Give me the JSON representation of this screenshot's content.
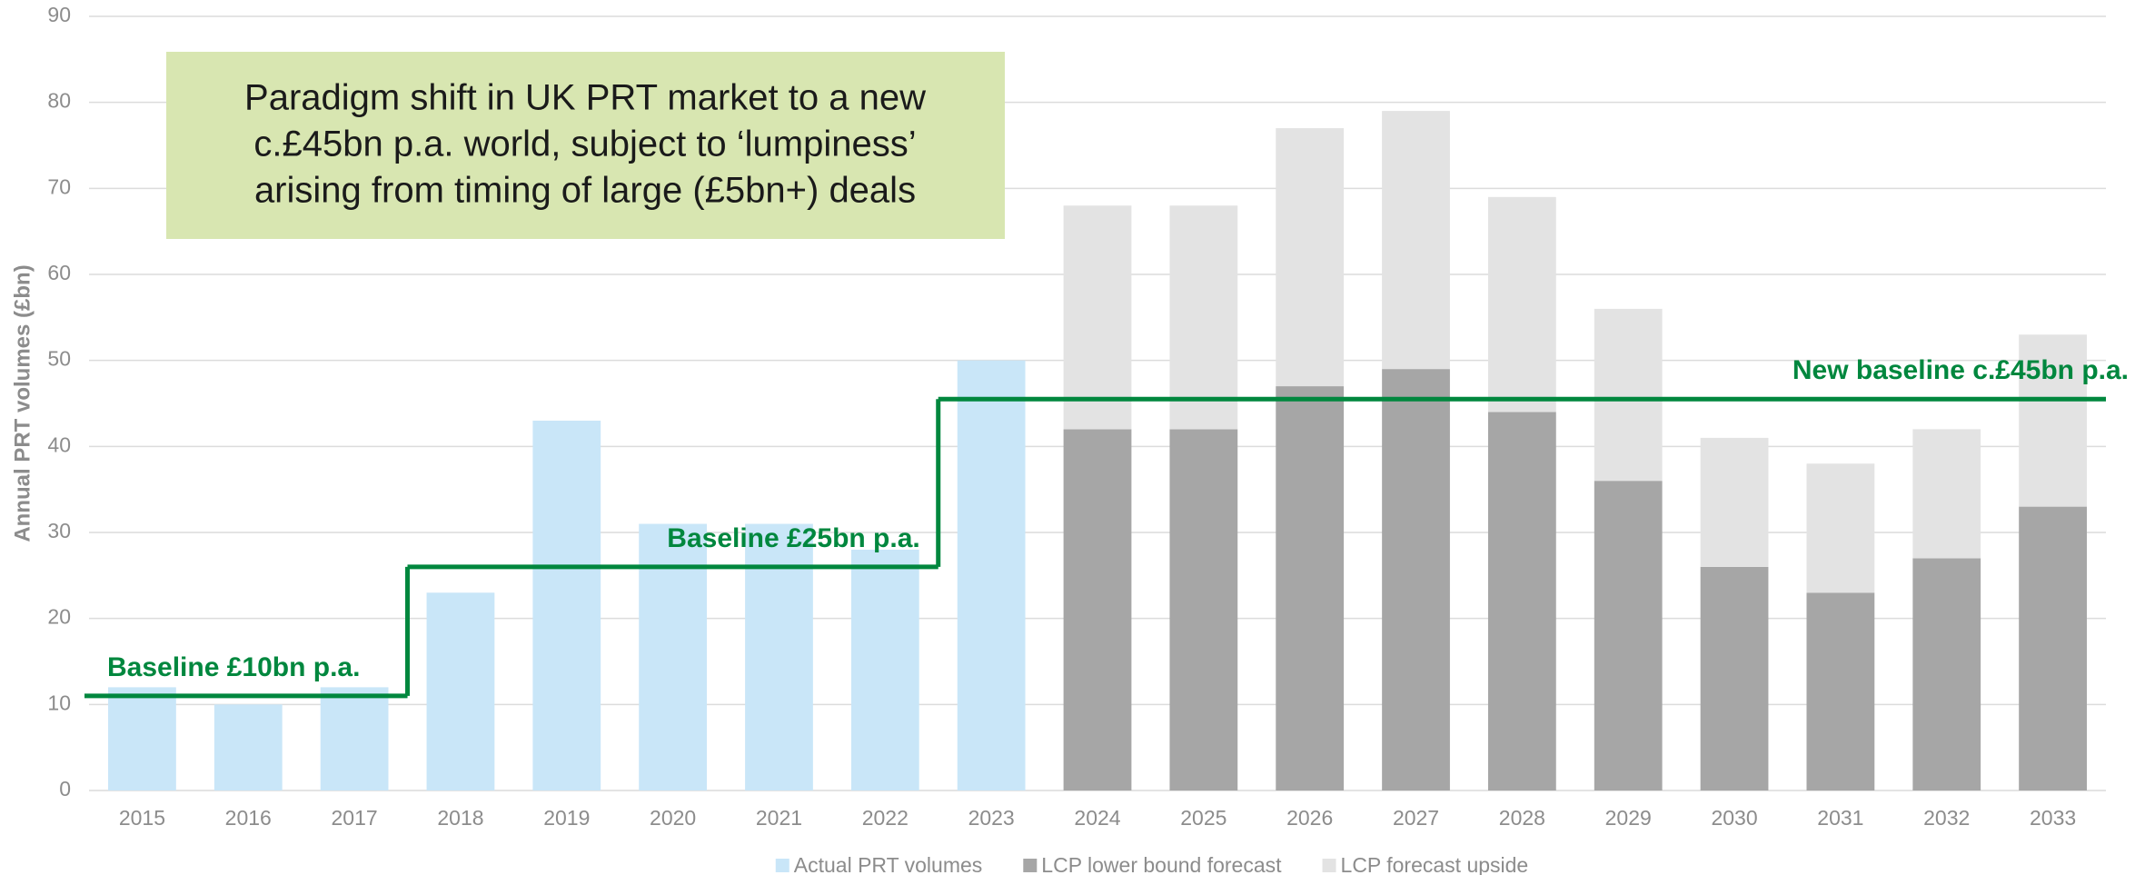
{
  "chart_data": {
    "type": "bar",
    "stacked": true,
    "y_axis_label": "Annual PRT volumes (£bn)",
    "categories": [
      "2015",
      "2016",
      "2017",
      "2018",
      "2019",
      "2020",
      "2021",
      "2022",
      "2023",
      "2024",
      "2025",
      "2026",
      "2027",
      "2028",
      "2029",
      "2030",
      "2031",
      "2032",
      "2033"
    ],
    "series": [
      {
        "name": "Actual PRT volumes",
        "color": "#c9e6f8",
        "values": [
          12,
          10,
          12,
          23,
          43,
          31,
          31,
          28,
          50,
          null,
          null,
          null,
          null,
          null,
          null,
          null,
          null,
          null,
          null
        ]
      },
      {
        "name": "LCP lower bound forecast",
        "color": "#a6a6a6",
        "values": [
          null,
          null,
          null,
          null,
          null,
          null,
          null,
          null,
          null,
          42,
          42,
          47,
          49,
          44,
          36,
          26,
          23,
          27,
          33
        ]
      },
      {
        "name": "LCP forecast upside",
        "color": "#e3e3e3",
        "values": [
          null,
          null,
          null,
          null,
          null,
          null,
          null,
          null,
          null,
          26,
          26,
          30,
          30,
          25,
          20,
          15,
          15,
          15,
          20
        ]
      }
    ],
    "ylim": [
      0,
      90
    ],
    "yticks": [
      0,
      10,
      20,
      30,
      40,
      50,
      60,
      70,
      80,
      90
    ],
    "grid": true,
    "baseline_color": "#00873e",
    "baselines": [
      {
        "label": "Baseline £10bn p.a.",
        "value": 11,
        "start": "2015",
        "end": "2017"
      },
      {
        "label": "Baseline £25bn p.a.",
        "value": 26,
        "start": "2018",
        "end": "2022"
      },
      {
        "label": "New baseline c.£45bn p.a.",
        "value": 45.5,
        "start": "2023",
        "end": "2033"
      }
    ],
    "annotation": {
      "lines": [
        "Paradigm shift in UK PRT market to a new",
        "c.£45bn p.a. world, subject to ‘lumpiness’",
        "arising from timing of large (£5bn+) deals"
      ],
      "color": "#d8e6b1"
    },
    "legend": "bottom"
  }
}
